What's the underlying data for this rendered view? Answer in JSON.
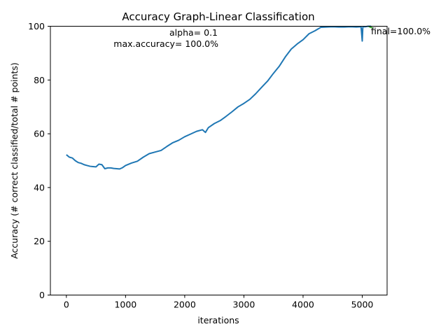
{
  "chart_data": {
    "type": "line",
    "title": "Accuracy Graph-Linear Classification",
    "xlabel": "iterations",
    "ylabel": "Accuracy (# correct classified/total # points)",
    "xlim": [
      -270,
      5420
    ],
    "ylim": [
      0,
      100
    ],
    "xticks": [
      0,
      1000,
      2000,
      3000,
      4000,
      5000
    ],
    "yticks": [
      0,
      20,
      40,
      60,
      80,
      100
    ],
    "grid": false,
    "annotations": {
      "alpha": "alpha= 0.1",
      "max_accuracy": "max.accuracy= 100.0%",
      "final": "final=100.0%"
    },
    "series": [
      {
        "color": "#1f77b4",
        "x": [
          0,
          50,
          100,
          150,
          200,
          250,
          300,
          350,
          400,
          450,
          500,
          550,
          600,
          650,
          700,
          750,
          800,
          850,
          900,
          950,
          1000,
          1100,
          1200,
          1300,
          1400,
          1500,
          1600,
          1700,
          1800,
          1900,
          2000,
          2100,
          2200,
          2300,
          2350,
          2400,
          2500,
          2600,
          2700,
          2800,
          2900,
          3000,
          3100,
          3200,
          3300,
          3400,
          3500,
          3600,
          3700,
          3800,
          3900,
          4000,
          4100,
          4200,
          4300,
          4400,
          4500,
          4600,
          4700,
          4800,
          4900,
          4980,
          5000,
          5010,
          5050,
          5100,
          5150
        ],
        "y": [
          52.2,
          51.3,
          51.0,
          50.0,
          49.3,
          49.0,
          48.5,
          48.2,
          47.9,
          47.8,
          47.7,
          48.7,
          48.5,
          47.0,
          47.3,
          47.3,
          47.1,
          47.0,
          46.9,
          47.4,
          48.2,
          49.1,
          49.8,
          51.3,
          52.6,
          53.2,
          53.8,
          55.3,
          56.7,
          57.6,
          58.9,
          59.9,
          60.9,
          61.5,
          60.5,
          62.3,
          63.8,
          64.9,
          66.5,
          68.2,
          70.0,
          71.3,
          72.8,
          74.9,
          77.3,
          79.6,
          82.5,
          85.2,
          88.6,
          91.5,
          93.4,
          95.0,
          97.2,
          98.3,
          99.6,
          99.7,
          99.8,
          99.7,
          99.7,
          99.8,
          99.7,
          99.8,
          94.5,
          99.8,
          99.8,
          100.0,
          100.0
        ]
      },
      {
        "color": "#2ca02c",
        "x": [
          5110,
          5180
        ],
        "y": [
          99.9,
          99.3
        ]
      }
    ]
  }
}
